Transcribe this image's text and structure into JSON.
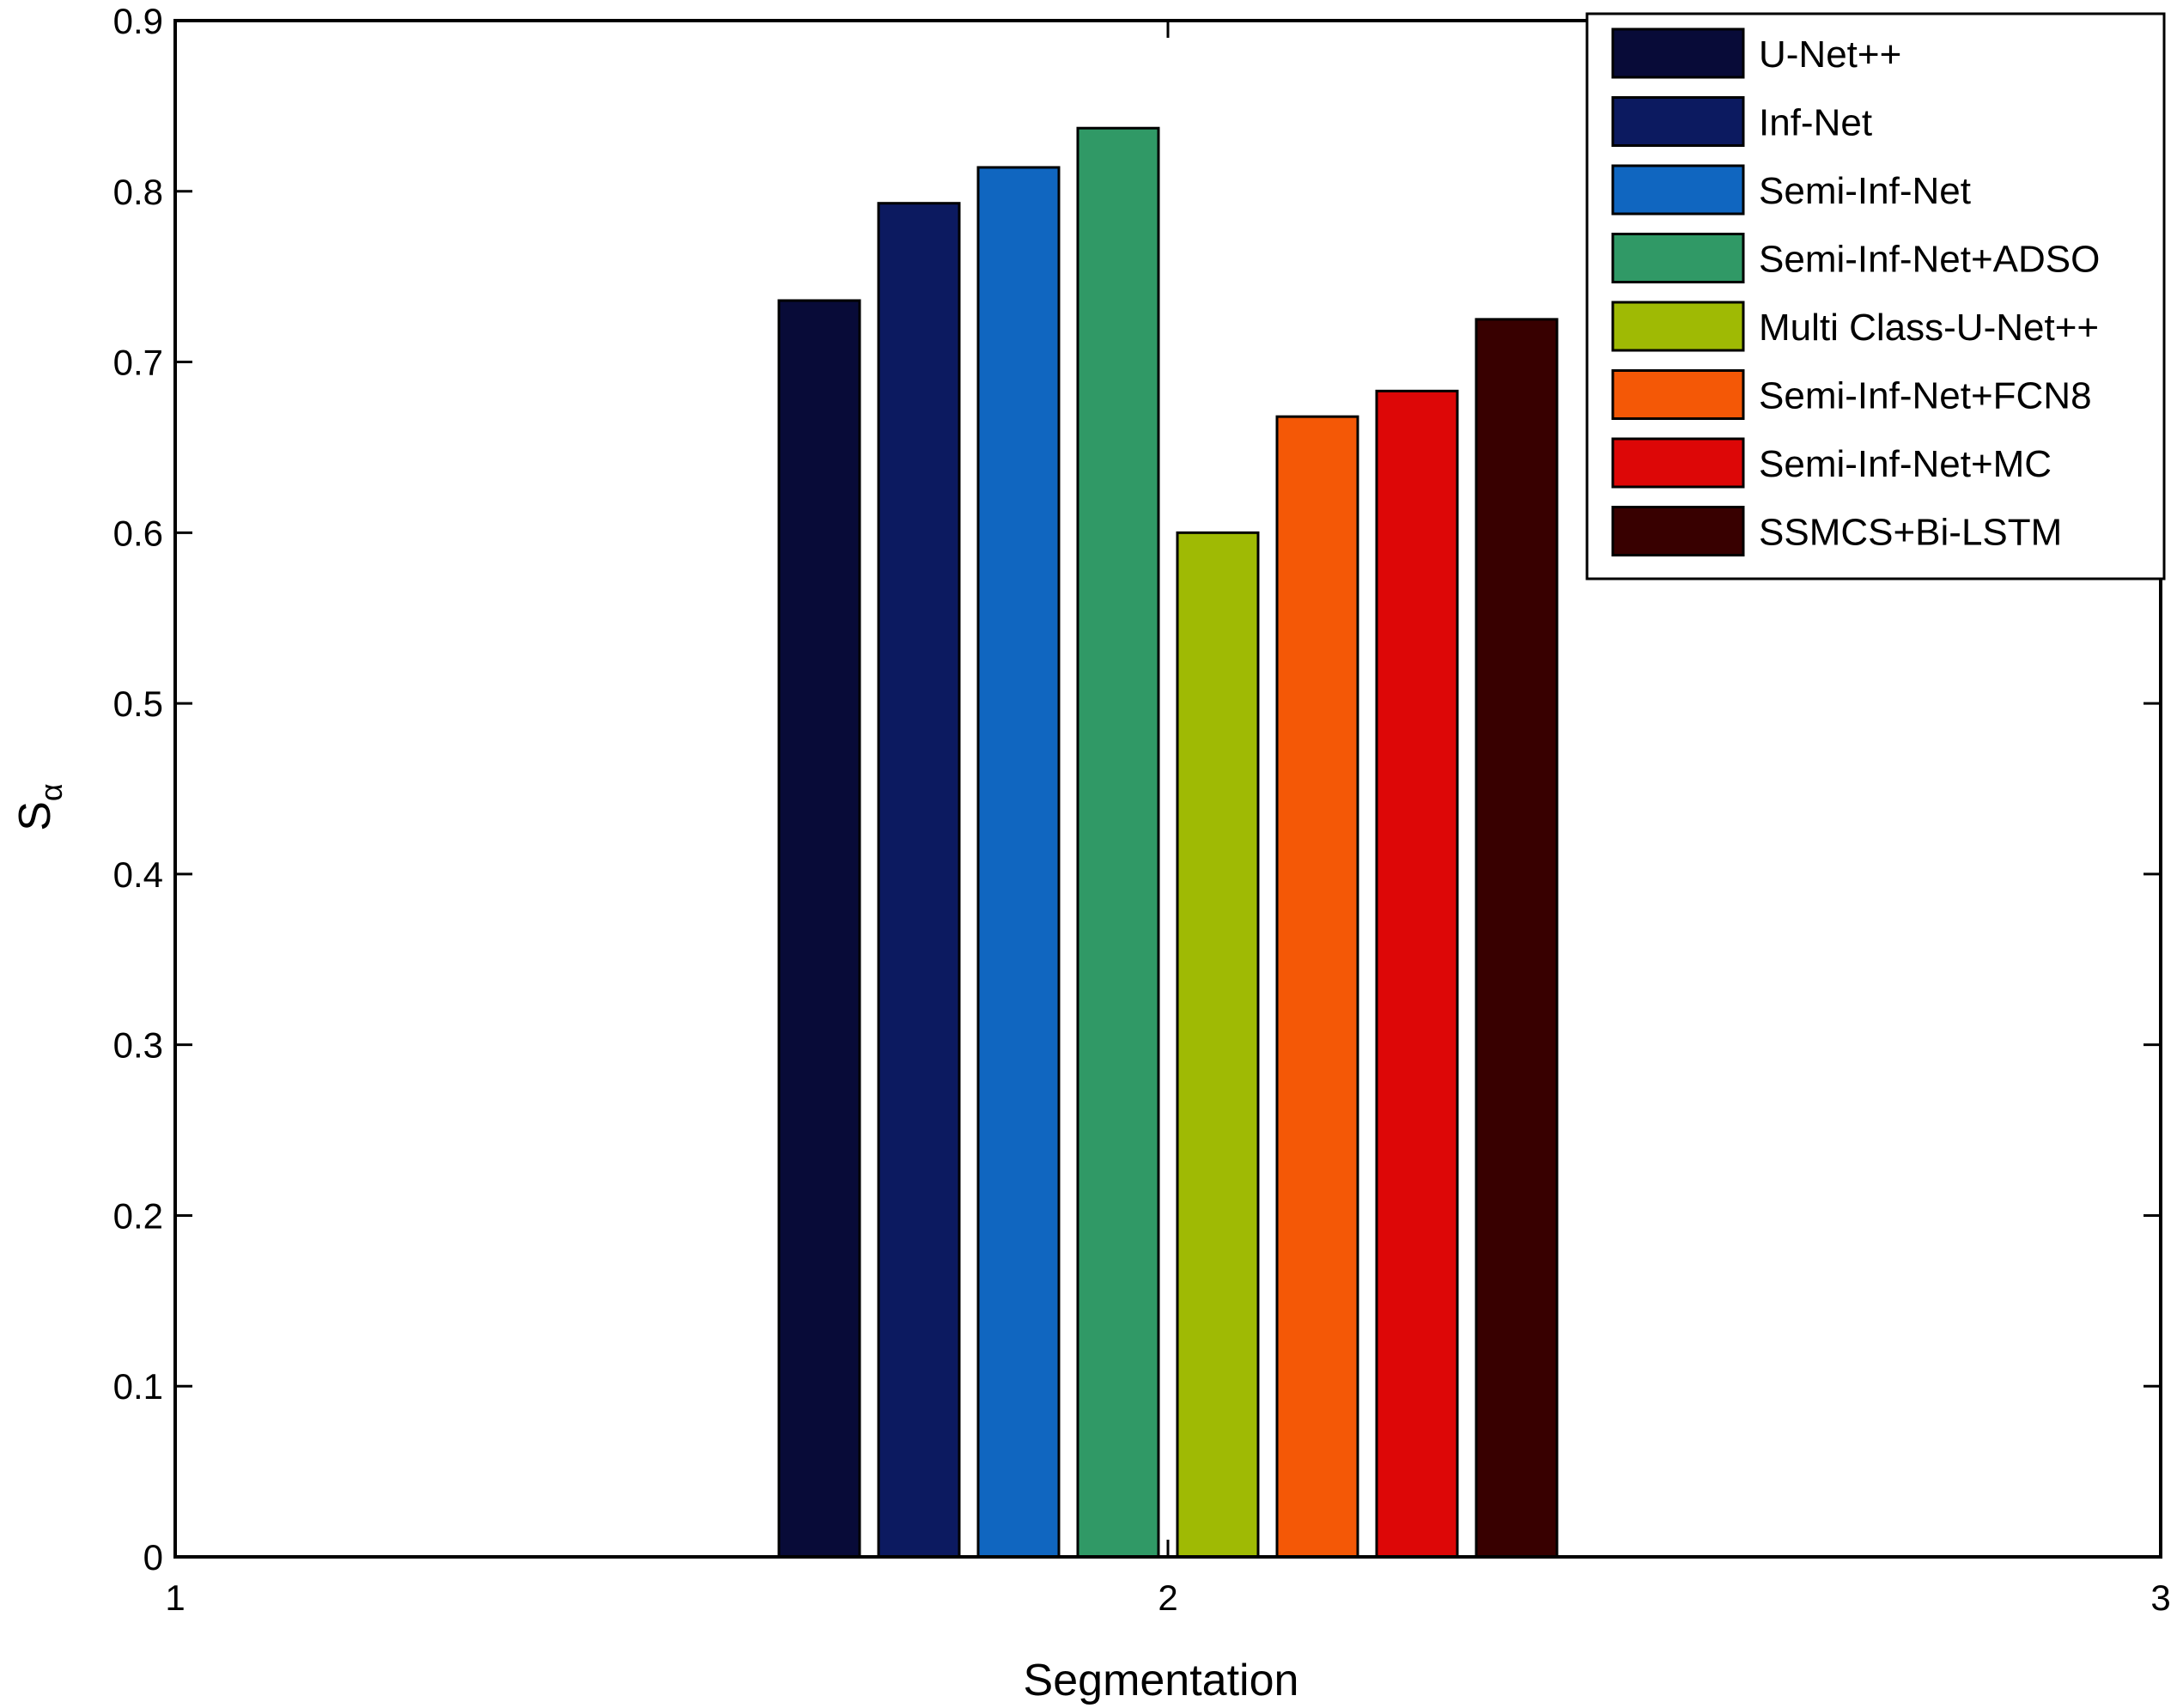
{
  "chart_data": {
    "type": "bar",
    "title": "",
    "xlabel": "Segmentation",
    "ylabel": "S",
    "ylabel_subscript": "α",
    "xlim": [
      1,
      3
    ],
    "ylim": [
      0,
      0.9
    ],
    "x_ticks": [
      "1",
      "2",
      "3"
    ],
    "y_ticks": [
      "0",
      "0.1",
      "0.2",
      "0.3",
      "0.4",
      "0.5",
      "0.6",
      "0.7",
      "0.8",
      "0.9"
    ],
    "categories": [
      "2"
    ],
    "legend_position": "top-right",
    "grid": false,
    "series": [
      {
        "name": "U-Net++",
        "values": [
          0.736
        ],
        "color": "#080b38"
      },
      {
        "name": "Inf-Net",
        "values": [
          0.793
        ],
        "color": "#0c1a60"
      },
      {
        "name": "Semi-Inf-Net",
        "values": [
          0.814
        ],
        "color": "#1066c0"
      },
      {
        "name": "Semi-Inf-Net+ADSO",
        "values": [
          0.837
        ],
        "color": "#309966"
      },
      {
        "name": "Multi Class-U-Net++",
        "values": [
          0.6
        ],
        "color": "#9fba04"
      },
      {
        "name": "Semi-Inf-Net+FCN8",
        "values": [
          0.668
        ],
        "color": "#f45806"
      },
      {
        "name": "Semi-Inf-Net+MC",
        "values": [
          0.683
        ],
        "color": "#dd0707"
      },
      {
        "name": "SSMCS+Bi-LSTM",
        "values": [
          0.725
        ],
        "color": "#380000"
      }
    ]
  }
}
